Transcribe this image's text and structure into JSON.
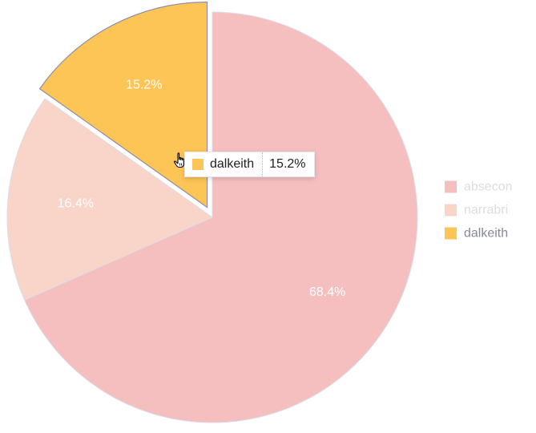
{
  "chart_data": {
    "type": "pie",
    "slices": [
      {
        "label": "absecon",
        "value": 68.4,
        "display": "68.4%",
        "color": "#f5bfc0"
      },
      {
        "label": "narrabri",
        "value": 16.4,
        "display": "16.4%",
        "color": "#f9d5c9"
      },
      {
        "label": "dalkeith",
        "value": 15.2,
        "display": "15.2%",
        "color": "#fdc456"
      }
    ],
    "legend": {
      "placement": "right",
      "items": [
        {
          "label": "absecon",
          "color": "#f5bfc0",
          "text_color": "#dddddd"
        },
        {
          "label": "narrabri",
          "color": "#f9d5c9",
          "text_color": "#dddddd"
        },
        {
          "label": "dalkeith",
          "color": "#fdc456",
          "text_color": "#888899"
        }
      ]
    },
    "highlighted": "dalkeith"
  },
  "tooltip": {
    "name": "dalkeith",
    "value": "15.2%",
    "color": "#fdc456"
  },
  "cursor": "hand-pointer-icon"
}
